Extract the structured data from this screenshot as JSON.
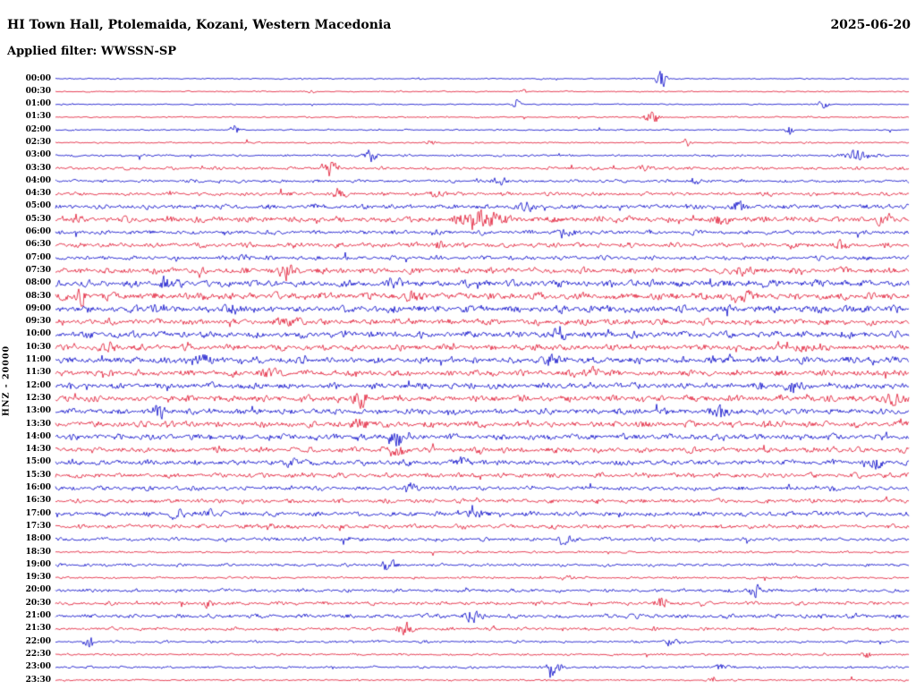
{
  "header": {
    "station_title": "HI Town Hall, Ptolemaida, Kozani, Western Macedonia",
    "date": "2025-06-20",
    "filter_label": "Applied filter: WWSSN-SP"
  },
  "axis": {
    "vertical_label": "HNZ - 20000"
  },
  "chart_data": {
    "type": "line",
    "subtype": "helicorder-seismogram",
    "title": "HI Town Hall, Ptolemaida, Kozani, Western Macedonia",
    "date": "2025-06-20",
    "filter": "WWSSN-SP",
    "channel": "HNZ",
    "scale": 20000,
    "minutes_per_row": 30,
    "rows_count": 48,
    "grid": false,
    "legend": "none",
    "colors": {
      "blue": "#0000c8",
      "red": "#e0102c"
    },
    "rows": [
      {
        "time": "00:00",
        "color": "blue",
        "amplitude": 0.1,
        "events": [
          {
            "pos": 0.71,
            "s": 1.0,
            "w": 0.006
          }
        ]
      },
      {
        "time": "00:30",
        "color": "red",
        "amplitude": 0.1,
        "events": [
          {
            "pos": 0.3,
            "s": 0.25,
            "w": 0.004
          },
          {
            "pos": 0.55,
            "s": 0.3,
            "w": 0.004
          }
        ]
      },
      {
        "time": "01:00",
        "color": "blue",
        "amplitude": 0.1,
        "events": [
          {
            "pos": 0.54,
            "s": 0.7,
            "w": 0.005
          },
          {
            "pos": 0.9,
            "s": 0.6,
            "w": 0.006
          }
        ]
      },
      {
        "time": "01:30",
        "color": "red",
        "amplitude": 0.12,
        "events": [
          {
            "pos": 0.7,
            "s": 0.8,
            "w": 0.008
          }
        ]
      },
      {
        "time": "02:00",
        "color": "blue",
        "amplitude": 0.12,
        "events": [
          {
            "pos": 0.21,
            "s": 0.6,
            "w": 0.005
          },
          {
            "pos": 0.86,
            "s": 0.7,
            "w": 0.004
          }
        ]
      },
      {
        "time": "02:30",
        "color": "red",
        "amplitude": 0.13,
        "events": [
          {
            "pos": 0.44,
            "s": 0.35,
            "w": 0.004
          },
          {
            "pos": 0.74,
            "s": 0.4,
            "w": 0.004
          }
        ]
      },
      {
        "time": "03:00",
        "color": "blue",
        "amplitude": 0.18,
        "events": [
          {
            "pos": 0.37,
            "s": 0.9,
            "w": 0.006
          },
          {
            "pos": 0.94,
            "s": 0.6,
            "w": 0.015
          }
        ]
      },
      {
        "time": "03:30",
        "color": "red",
        "amplitude": 0.25,
        "events": [
          {
            "pos": 0.32,
            "s": 1.0,
            "w": 0.008
          },
          {
            "pos": 0.69,
            "s": 0.4,
            "w": 0.01
          }
        ]
      },
      {
        "time": "04:00",
        "color": "blue",
        "amplitude": 0.25,
        "events": [
          {
            "pos": 0.52,
            "s": 0.4,
            "w": 0.01
          },
          {
            "pos": 0.75,
            "s": 0.35,
            "w": 0.008
          }
        ]
      },
      {
        "time": "04:30",
        "color": "red",
        "amplitude": 0.3,
        "events": [
          {
            "pos": 0.33,
            "s": 0.5,
            "w": 0.01
          },
          {
            "pos": 0.45,
            "s": 0.4,
            "w": 0.008
          }
        ]
      },
      {
        "time": "05:00",
        "color": "blue",
        "amplitude": 0.38,
        "events": [
          {
            "pos": 0.8,
            "s": 0.6,
            "w": 0.008
          },
          {
            "pos": 0.55,
            "s": 0.35,
            "w": 0.01
          }
        ]
      },
      {
        "time": "05:30",
        "color": "red",
        "amplitude": 0.5,
        "events": [
          {
            "pos": 0.5,
            "s": 0.9,
            "w": 0.025
          },
          {
            "pos": 0.78,
            "s": 0.5,
            "w": 0.01
          },
          {
            "pos": 0.97,
            "s": 0.6,
            "w": 0.008
          }
        ]
      },
      {
        "time": "06:00",
        "color": "blue",
        "amplitude": 0.35,
        "events": [
          {
            "pos": 0.6,
            "s": 0.3,
            "w": 0.01
          }
        ]
      },
      {
        "time": "06:30",
        "color": "red",
        "amplitude": 0.4,
        "events": [
          {
            "pos": 0.45,
            "s": 0.5,
            "w": 0.008
          },
          {
            "pos": 0.92,
            "s": 0.4,
            "w": 0.008
          }
        ]
      },
      {
        "time": "07:00",
        "color": "blue",
        "amplitude": 0.35,
        "events": [
          {
            "pos": 0.22,
            "s": 0.3,
            "w": 0.008
          }
        ]
      },
      {
        "time": "07:30",
        "color": "red",
        "amplitude": 0.5,
        "events": [
          {
            "pos": 0.27,
            "s": 0.6,
            "w": 0.01
          },
          {
            "pos": 0.8,
            "s": 0.4,
            "w": 0.01
          }
        ]
      },
      {
        "time": "08:00",
        "color": "blue",
        "amplitude": 0.55,
        "events": [
          {
            "pos": 0.13,
            "s": 0.8,
            "w": 0.006
          },
          {
            "pos": 0.4,
            "s": 0.4,
            "w": 0.01
          }
        ]
      },
      {
        "time": "08:30",
        "color": "red",
        "amplitude": 0.6,
        "events": [
          {
            "pos": 0.03,
            "s": 0.9,
            "w": 0.005
          },
          {
            "pos": 0.42,
            "s": 0.5,
            "w": 0.01
          },
          {
            "pos": 0.8,
            "s": 0.6,
            "w": 0.01
          }
        ]
      },
      {
        "time": "09:00",
        "color": "blue",
        "amplitude": 0.6,
        "events": [
          {
            "pos": 0.12,
            "s": 0.6,
            "w": 0.008
          },
          {
            "pos": 0.21,
            "s": 0.5,
            "w": 0.008
          }
        ]
      },
      {
        "time": "09:30",
        "color": "red",
        "amplitude": 0.5,
        "events": [
          {
            "pos": 0.28,
            "s": 0.5,
            "w": 0.01
          }
        ]
      },
      {
        "time": "10:00",
        "color": "blue",
        "amplitude": 0.55,
        "events": [
          {
            "pos": 0.59,
            "s": 0.8,
            "w": 0.006
          }
        ]
      },
      {
        "time": "10:30",
        "color": "red",
        "amplitude": 0.5,
        "events": [
          {
            "pos": 0.06,
            "s": 0.5,
            "w": 0.008
          },
          {
            "pos": 0.88,
            "s": 0.5,
            "w": 0.01
          }
        ]
      },
      {
        "time": "11:00",
        "color": "blue",
        "amplitude": 0.55,
        "events": [
          {
            "pos": 0.17,
            "s": 0.6,
            "w": 0.008
          },
          {
            "pos": 0.58,
            "s": 0.5,
            "w": 0.01
          }
        ]
      },
      {
        "time": "11:30",
        "color": "red",
        "amplitude": 0.5,
        "events": [
          {
            "pos": 0.25,
            "s": 0.6,
            "w": 0.008
          },
          {
            "pos": 0.63,
            "s": 0.5,
            "w": 0.01
          }
        ]
      },
      {
        "time": "12:00",
        "color": "blue",
        "amplitude": 0.5,
        "events": [
          {
            "pos": 0.86,
            "s": 0.7,
            "w": 0.006
          }
        ]
      },
      {
        "time": "12:30",
        "color": "red",
        "amplitude": 0.55,
        "events": [
          {
            "pos": 0.36,
            "s": 0.7,
            "w": 0.008
          },
          {
            "pos": 0.98,
            "s": 0.7,
            "w": 0.008
          }
        ]
      },
      {
        "time": "13:00",
        "color": "blue",
        "amplitude": 0.5,
        "events": [
          {
            "pos": 0.12,
            "s": 0.9,
            "w": 0.006
          },
          {
            "pos": 0.78,
            "s": 0.5,
            "w": 0.01
          }
        ]
      },
      {
        "time": "13:30",
        "color": "red",
        "amplitude": 0.5,
        "events": [
          {
            "pos": 0.36,
            "s": 0.5,
            "w": 0.01
          },
          {
            "pos": 0.83,
            "s": 0.5,
            "w": 0.008
          }
        ]
      },
      {
        "time": "14:00",
        "color": "blue",
        "amplitude": 0.5,
        "events": [
          {
            "pos": 0.4,
            "s": 1.0,
            "w": 0.008
          }
        ]
      },
      {
        "time": "14:30",
        "color": "red",
        "amplitude": 0.45,
        "events": [
          {
            "pos": 0.4,
            "s": 0.6,
            "w": 0.012
          }
        ]
      },
      {
        "time": "15:00",
        "color": "blue",
        "amplitude": 0.45,
        "events": [
          {
            "pos": 0.28,
            "s": 0.4,
            "w": 0.01
          },
          {
            "pos": 0.48,
            "s": 0.5,
            "w": 0.008
          },
          {
            "pos": 0.96,
            "s": 0.5,
            "w": 0.008
          }
        ]
      },
      {
        "time": "15:30",
        "color": "red",
        "amplitude": 0.4,
        "events": []
      },
      {
        "time": "16:00",
        "color": "blue",
        "amplitude": 0.35,
        "events": [
          {
            "pos": 0.42,
            "s": 0.5,
            "w": 0.008
          }
        ]
      },
      {
        "time": "16:30",
        "color": "red",
        "amplitude": 0.35,
        "events": []
      },
      {
        "time": "17:00",
        "color": "blue",
        "amplitude": 0.4,
        "events": [
          {
            "pos": 0.14,
            "s": 0.6,
            "w": 0.006
          },
          {
            "pos": 0.18,
            "s": 0.5,
            "w": 0.006
          },
          {
            "pos": 0.49,
            "s": 0.6,
            "w": 0.008
          }
        ]
      },
      {
        "time": "17:30",
        "color": "red",
        "amplitude": 0.35,
        "events": [
          {
            "pos": 0.25,
            "s": 0.4,
            "w": 0.008
          }
        ]
      },
      {
        "time": "18:00",
        "color": "blue",
        "amplitude": 0.3,
        "events": [
          {
            "pos": 0.6,
            "s": 0.6,
            "w": 0.008
          }
        ]
      },
      {
        "time": "18:30",
        "color": "red",
        "amplitude": 0.18,
        "events": []
      },
      {
        "time": "19:00",
        "color": "blue",
        "amplitude": 0.25,
        "events": [
          {
            "pos": 0.39,
            "s": 0.7,
            "w": 0.008
          }
        ]
      },
      {
        "time": "19:30",
        "color": "red",
        "amplitude": 0.18,
        "events": [
          {
            "pos": 0.6,
            "s": 0.3,
            "w": 0.008
          }
        ]
      },
      {
        "time": "20:00",
        "color": "blue",
        "amplitude": 0.3,
        "events": [
          {
            "pos": 0.82,
            "s": 0.8,
            "w": 0.006
          }
        ]
      },
      {
        "time": "20:30",
        "color": "red",
        "amplitude": 0.3,
        "events": [
          {
            "pos": 0.71,
            "s": 0.9,
            "w": 0.006
          },
          {
            "pos": 0.18,
            "s": 0.4,
            "w": 0.006
          }
        ]
      },
      {
        "time": "21:00",
        "color": "blue",
        "amplitude": 0.35,
        "events": [
          {
            "pos": 0.49,
            "s": 0.5,
            "w": 0.01
          }
        ]
      },
      {
        "time": "21:30",
        "color": "red",
        "amplitude": 0.25,
        "events": [
          {
            "pos": 0.41,
            "s": 0.7,
            "w": 0.008
          }
        ]
      },
      {
        "time": "22:00",
        "color": "blue",
        "amplitude": 0.2,
        "events": [
          {
            "pos": 0.04,
            "s": 0.8,
            "w": 0.005
          },
          {
            "pos": 0.72,
            "s": 0.5,
            "w": 0.006
          }
        ]
      },
      {
        "time": "22:30",
        "color": "red",
        "amplitude": 0.18,
        "events": [
          {
            "pos": 0.95,
            "s": 0.4,
            "w": 0.006
          }
        ]
      },
      {
        "time": "23:00",
        "color": "blue",
        "amplitude": 0.2,
        "events": [
          {
            "pos": 0.585,
            "s": 0.9,
            "w": 0.008
          },
          {
            "pos": 0.78,
            "s": 0.4,
            "w": 0.006
          }
        ]
      },
      {
        "time": "23:30",
        "color": "red",
        "amplitude": 0.15,
        "events": [
          {
            "pos": 0.77,
            "s": 0.5,
            "w": 0.005
          }
        ]
      }
    ]
  }
}
